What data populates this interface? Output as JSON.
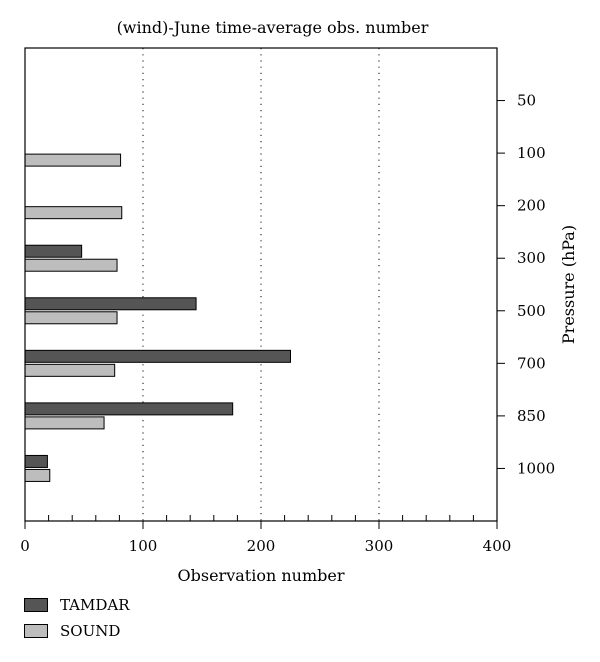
{
  "chart_data": {
    "type": "bar",
    "orientation": "horizontal",
    "title": "(wind)-June time-average obs. number",
    "xlabel": "Observation number",
    "ylabel": "Pressure (hPa)",
    "categories": [
      "50",
      "100",
      "200",
      "300",
      "500",
      "700",
      "850",
      "1000"
    ],
    "series": [
      {
        "name": "TAMDAR",
        "color": "#555555",
        "values": [
          0,
          0,
          0,
          48,
          145,
          225,
          176,
          19
        ]
      },
      {
        "name": "SOUND",
        "color": "#bdbdbd",
        "values": [
          0,
          81,
          82,
          78,
          78,
          76,
          67,
          21
        ]
      }
    ],
    "xlim": [
      0,
      400
    ],
    "xticks": [
      "0",
      "100",
      "200",
      "300",
      "400"
    ],
    "grid": "vertical dotted",
    "y_axis_side": "right",
    "legend_position": "bottom-left"
  }
}
